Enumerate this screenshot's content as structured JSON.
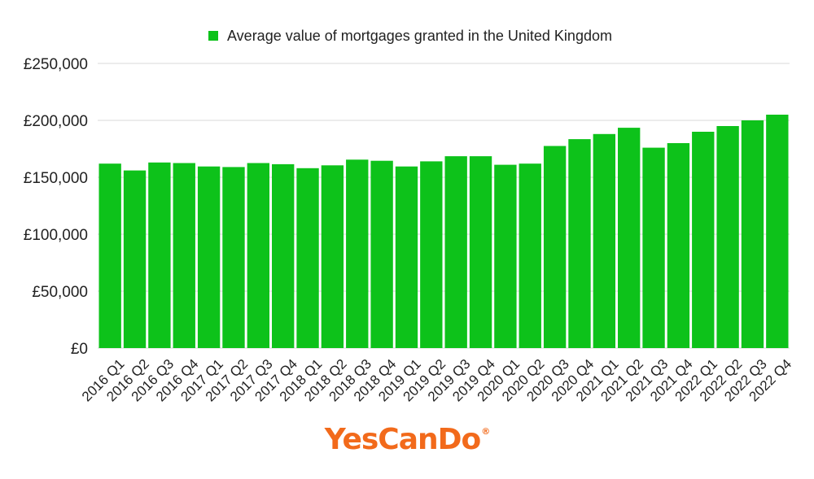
{
  "chart_data": {
    "type": "bar",
    "legend": {
      "label": "Average value of mortgages granted in the United Kingdom",
      "position": "top-center"
    },
    "categories": [
      "2016 Q1",
      "2016 Q2",
      "2016 Q3",
      "2016 Q4",
      "2017 Q1",
      "2017 Q2",
      "2017 Q3",
      "2017 Q4",
      "2018 Q1",
      "2018 Q2",
      "2018 Q3",
      "2018 Q4",
      "2019 Q1",
      "2019 Q2",
      "2019 Q3",
      "2019 Q4",
      "2020 Q1",
      "2020 Q2",
      "2020 Q3",
      "2020 Q4",
      "2021 Q1",
      "2021 Q2",
      "2021 Q3",
      "2021 Q4",
      "2022 Q1",
      "2022 Q2",
      "2022 Q3",
      "2022 Q4"
    ],
    "series": [
      {
        "name": "Average value of mortgages granted in the United Kingdom",
        "values": [
          162000,
          156000,
          163000,
          162500,
          159500,
          159000,
          162500,
          161500,
          158000,
          160500,
          165500,
          164500,
          159500,
          164000,
          168500,
          168500,
          161000,
          162000,
          177500,
          183500,
          188000,
          193500,
          176000,
          180000,
          190000,
          195000,
          200000,
          205000
        ]
      }
    ],
    "ylim": [
      0,
      250000
    ],
    "yticks": [
      0,
      50000,
      100000,
      150000,
      200000,
      250000
    ],
    "ytick_labels": [
      "£0",
      "£50,000",
      "£100,000",
      "£150,000",
      "£200,000",
      "£250,000"
    ],
    "grid": true,
    "colors": {
      "bar": "#0dc21a",
      "grid": "#d9d9d9",
      "text": "#222222"
    }
  },
  "branding": {
    "logo_text": "YesCanDo",
    "registered_mark": "®"
  }
}
